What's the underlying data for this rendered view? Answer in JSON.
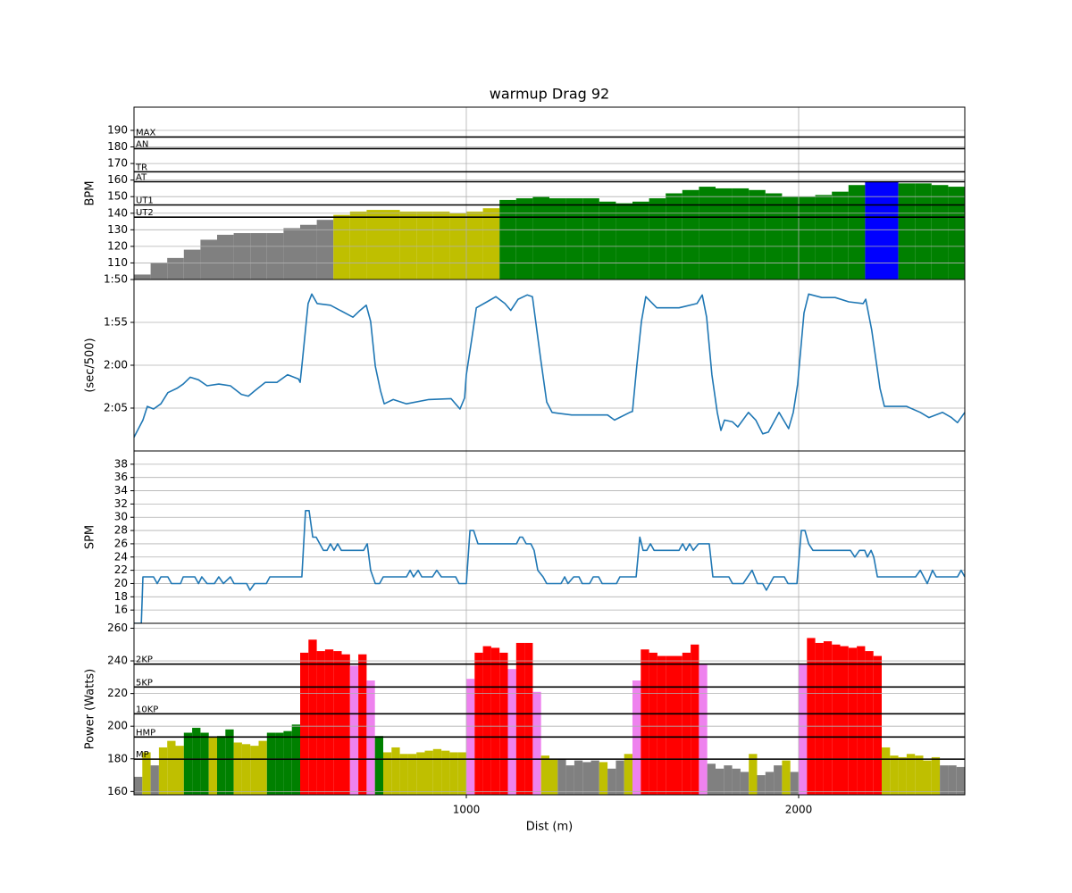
{
  "chart_data": [
    {
      "type": "bar",
      "title": "warmup Drag 92",
      "ylabel": "BPM",
      "xlim": [
        0,
        2500
      ],
      "xticks": [
        1000,
        2000
      ],
      "ylim": [
        100,
        204
      ],
      "yticks": [
        110,
        120,
        130,
        140,
        150,
        160,
        170,
        180,
        190
      ],
      "grid": true,
      "hlines": [
        {
          "value": 186,
          "label": "MAX"
        },
        {
          "value": 179,
          "label": "AN"
        },
        {
          "value": 165,
          "label": "TR"
        },
        {
          "value": 159,
          "label": "AT"
        },
        {
          "value": 145,
          "label": "UT1"
        },
        {
          "value": 137.6,
          "label": "UT2"
        }
      ],
      "x": [
        0,
        50,
        100,
        150,
        200,
        250,
        300,
        350,
        400,
        450,
        500,
        550,
        600,
        650,
        700,
        750,
        800,
        850,
        900,
        950,
        1000,
        1050,
        1100,
        1150,
        1200,
        1250,
        1300,
        1350,
        1400,
        1450,
        1500,
        1550,
        1600,
        1650,
        1700,
        1750,
        1800,
        1850,
        1900,
        1950,
        2000,
        2050,
        2100,
        2150,
        2200,
        2250,
        2300,
        2350,
        2400,
        2450
      ],
      "values": [
        103,
        110,
        113,
        118,
        124,
        127,
        128,
        128,
        128,
        131,
        133,
        136,
        139,
        141,
        142,
        142,
        141,
        141,
        141,
        140,
        141,
        143,
        148,
        149,
        150,
        149,
        149,
        149,
        147,
        146,
        147,
        149,
        152,
        154,
        156,
        155,
        155,
        154,
        152,
        150,
        150,
        151,
        153,
        157,
        159,
        159,
        158,
        158,
        157,
        156
      ],
      "colors": [
        "#808080",
        "#808080",
        "#808080",
        "#808080",
        "#808080",
        "#808080",
        "#808080",
        "#808080",
        "#808080",
        "#808080",
        "#808080",
        "#808080",
        "#bfbf00",
        "#bfbf00",
        "#bfbf00",
        "#bfbf00",
        "#bfbf00",
        "#bfbf00",
        "#bfbf00",
        "#bfbf00",
        "#bfbf00",
        "#bfbf00",
        "#008000",
        "#008000",
        "#008000",
        "#008000",
        "#008000",
        "#008000",
        "#008000",
        "#008000",
        "#008000",
        "#008000",
        "#008000",
        "#008000",
        "#008000",
        "#008000",
        "#008000",
        "#008000",
        "#008000",
        "#008000",
        "#008000",
        "#008000",
        "#008000",
        "#008000",
        "#0000ff",
        "#0000ff",
        "#008000",
        "#008000",
        "#008000",
        "#008000"
      ]
    },
    {
      "type": "line",
      "ylabel": "(sec/500)",
      "xlim": [
        0,
        2500
      ],
      "xticks": [
        1000,
        2000
      ],
      "ylim": [
        130,
        110
      ],
      "yticks": [
        {
          "value": 110,
          "label": "1:50"
        },
        {
          "value": 115,
          "label": "1:55"
        },
        {
          "value": 120,
          "label": "2:00"
        },
        {
          "value": 125,
          "label": "2:05"
        }
      ],
      "grid": true,
      "color": "#1f77b4",
      "x": [
        0,
        27,
        40,
        59,
        81,
        102,
        129,
        148,
        169,
        194,
        220,
        255,
        290,
        323,
        344,
        363,
        395,
        430,
        462,
        495,
        500,
        505,
        524,
        535,
        551,
        591,
        659,
        680,
        699,
        712,
        726,
        742,
        753,
        780,
        820,
        887,
        954,
        981,
        995,
        1000,
        1016,
        1030,
        1062,
        1089,
        1116,
        1134,
        1156,
        1183,
        1199,
        1223,
        1242,
        1258,
        1277,
        1317,
        1425,
        1446,
        1492,
        1500,
        1513,
        1527,
        1540,
        1573,
        1640,
        1694,
        1710,
        1723,
        1739,
        1755,
        1766,
        1777,
        1801,
        1817,
        1849,
        1871,
        1892,
        1909,
        1941,
        1970,
        1984,
        1997,
        2016,
        2030,
        2070,
        2110,
        2151,
        2194,
        2202,
        2220,
        2245,
        2258,
        2285,
        2325,
        2366,
        2392,
        2433,
        2460,
        2478,
        2500
      ],
      "values": [
        128.4,
        126.4,
        124.8,
        125.1,
        124.5,
        123.2,
        122.7,
        122.2,
        121.4,
        121.7,
        122.4,
        122.2,
        122.4,
        123.4,
        123.6,
        123,
        122,
        122,
        121.1,
        121.6,
        122,
        120.1,
        112.8,
        111.7,
        112.8,
        113,
        114.4,
        113.6,
        113,
        114.9,
        120.1,
        123,
        124.5,
        124,
        124.5,
        124,
        123.9,
        125.1,
        123.8,
        121.1,
        117,
        113.3,
        112.6,
        112,
        112.8,
        113.6,
        112.3,
        111.8,
        112,
        119.1,
        124.3,
        125.5,
        125.6,
        125.8,
        125.8,
        126.4,
        125.5,
        125.4,
        120.1,
        114.9,
        112,
        113.3,
        113.3,
        112.8,
        111.8,
        114.4,
        121.1,
        125.5,
        127.6,
        126.4,
        126.6,
        127.2,
        125.5,
        126.4,
        128,
        127.8,
        125.5,
        127.4,
        125.5,
        122.2,
        113.9,
        111.7,
        112.1,
        112.1,
        112.6,
        112.8,
        112.3,
        115.9,
        122.7,
        124.8,
        124.8,
        124.8,
        125.5,
        126.1,
        125.5,
        126.1,
        126.7,
        125.5
      ]
    },
    {
      "type": "line",
      "ylabel": "SPM",
      "xlim": [
        0,
        2500
      ],
      "xticks": [
        1000,
        2000
      ],
      "ylim": [
        14,
        40
      ],
      "yticks": [
        16,
        18,
        20,
        22,
        24,
        26,
        28,
        30,
        32,
        34,
        36,
        38
      ],
      "grid": true,
      "color": "#1f77b4",
      "x": [
        0,
        22,
        27,
        59,
        70,
        81,
        102,
        113,
        140,
        148,
        183,
        194,
        204,
        220,
        242,
        255,
        269,
        290,
        301,
        339,
        349,
        363,
        398,
        409,
        505,
        516,
        527,
        538,
        548,
        570,
        581,
        591,
        602,
        613,
        624,
        691,
        702,
        712,
        726,
        739,
        750,
        820,
        831,
        841,
        855,
        866,
        898,
        911,
        925,
        968,
        978,
        1000,
        1011,
        1022,
        1035,
        1151,
        1161,
        1169,
        1180,
        1194,
        1204,
        1215,
        1231,
        1242,
        1285,
        1296,
        1306,
        1323,
        1339,
        1349,
        1371,
        1382,
        1398,
        1409,
        1452,
        1462,
        1511,
        1522,
        1532,
        1543,
        1554,
        1565,
        1640,
        1651,
        1661,
        1672,
        1683,
        1699,
        1731,
        1742,
        1790,
        1801,
        1833,
        1860,
        1876,
        1892,
        1903,
        1925,
        1957,
        1968,
        1995,
        2008,
        2019,
        2030,
        2043,
        2156,
        2169,
        2183,
        2199,
        2207,
        2218,
        2226,
        2237,
        2352,
        2366,
        2387,
        2403,
        2414,
        2478,
        2489,
        2500
      ],
      "values": [
        14,
        14,
        21,
        21,
        20,
        21,
        21,
        20,
        20,
        21,
        21,
        20,
        21,
        20,
        20,
        21,
        20,
        21,
        20,
        20,
        19,
        20,
        20,
        21,
        21,
        31,
        31,
        27,
        27,
        25,
        25,
        26,
        25,
        26,
        25,
        25,
        26,
        22,
        20,
        20,
        21,
        21,
        22,
        21,
        22,
        21,
        21,
        22,
        21,
        21,
        20,
        20,
        28,
        28,
        26,
        26,
        27,
        27,
        26,
        26,
        25,
        22,
        21,
        20,
        20,
        21,
        20,
        21,
        21,
        20,
        20,
        21,
        21,
        20,
        20,
        21,
        21,
        27,
        25,
        25,
        26,
        25,
        25,
        26,
        25,
        26,
        25,
        26,
        26,
        21,
        21,
        20,
        20,
        22,
        20,
        20,
        19,
        21,
        21,
        20,
        20,
        28,
        28,
        26,
        25,
        25,
        24,
        25,
        25,
        24,
        25,
        24,
        21,
        21,
        22,
        20,
        22,
        21,
        21,
        22,
        21
      ]
    },
    {
      "type": "bar",
      "ylabel": "Power (Watts)",
      "xlabel": "Dist (m)",
      "xlim": [
        0,
        2500
      ],
      "xticks": [
        1000,
        2000
      ],
      "ylim": [
        158,
        263
      ],
      "yticks": [
        160,
        180,
        200,
        220,
        240,
        260
      ],
      "grid": true,
      "hlines": [
        {
          "value": 238,
          "label": "2KP"
        },
        {
          "value": 224,
          "label": "5KP"
        },
        {
          "value": 207.6,
          "label": "10KP"
        },
        {
          "value": 193.4,
          "label": "HMP"
        },
        {
          "value": 179.8,
          "label": "MP"
        }
      ],
      "x": [
        0,
        25,
        50,
        75,
        100,
        125,
        150,
        175,
        200,
        225,
        250,
        275,
        300,
        325,
        350,
        375,
        400,
        425,
        450,
        475,
        500,
        525,
        550,
        575,
        600,
        625,
        650,
        675,
        700,
        725,
        750,
        775,
        800,
        825,
        850,
        875,
        900,
        925,
        950,
        975,
        1000,
        1025,
        1050,
        1075,
        1100,
        1125,
        1150,
        1175,
        1200,
        1225,
        1250,
        1275,
        1300,
        1325,
        1350,
        1375,
        1400,
        1425,
        1450,
        1475,
        1500,
        1525,
        1550,
        1575,
        1600,
        1625,
        1650,
        1675,
        1700,
        1725,
        1750,
        1775,
        1800,
        1825,
        1850,
        1875,
        1900,
        1925,
        1950,
        1975,
        2000,
        2025,
        2050,
        2075,
        2100,
        2125,
        2150,
        2175,
        2200,
        2225,
        2250,
        2275,
        2300,
        2325,
        2350,
        2375,
        2400,
        2425,
        2450,
        2475
      ],
      "values": [
        169,
        184,
        176,
        187,
        191,
        188,
        196,
        199,
        196,
        193,
        194,
        198,
        190,
        189,
        188,
        191,
        196,
        196,
        197,
        201,
        245,
        253,
        246,
        247,
        246,
        244,
        237,
        244,
        228,
        194,
        184,
        187,
        183,
        183,
        184,
        185,
        186,
        185,
        184,
        184,
        229,
        245,
        249,
        248,
        245,
        235,
        251,
        251,
        221,
        182,
        180,
        180,
        176,
        179,
        178,
        179,
        178,
        174,
        179,
        183,
        228,
        247,
        245,
        243,
        243,
        243,
        245,
        250,
        238,
        177,
        174,
        176,
        174,
        172,
        183,
        170,
        172,
        176,
        179,
        172,
        238,
        254,
        251,
        252,
        250,
        249,
        248,
        249,
        246,
        243,
        187,
        182,
        181,
        183,
        182,
        179,
        181,
        176,
        176,
        175
      ],
      "colors": [
        "#808080",
        "#bfbf00",
        "#808080",
        "#bfbf00",
        "#bfbf00",
        "#bfbf00",
        "#008000",
        "#008000",
        "#008000",
        "#bfbf00",
        "#008000",
        "#008000",
        "#bfbf00",
        "#bfbf00",
        "#bfbf00",
        "#bfbf00",
        "#008000",
        "#008000",
        "#008000",
        "#008000",
        "#ff0000",
        "#ff0000",
        "#ff0000",
        "#ff0000",
        "#ff0000",
        "#ff0000",
        "#ee82ee",
        "#ff0000",
        "#ee82ee",
        "#008000",
        "#bfbf00",
        "#bfbf00",
        "#bfbf00",
        "#bfbf00",
        "#bfbf00",
        "#bfbf00",
        "#bfbf00",
        "#bfbf00",
        "#bfbf00",
        "#bfbf00",
        "#ee82ee",
        "#ff0000",
        "#ff0000",
        "#ff0000",
        "#ff0000",
        "#ee82ee",
        "#ff0000",
        "#ff0000",
        "#ee82ee",
        "#bfbf00",
        "#bfbf00",
        "#808080",
        "#808080",
        "#808080",
        "#808080",
        "#808080",
        "#bfbf00",
        "#808080",
        "#808080",
        "#bfbf00",
        "#ee82ee",
        "#ff0000",
        "#ff0000",
        "#ff0000",
        "#ff0000",
        "#ff0000",
        "#ff0000",
        "#ff0000",
        "#ee82ee",
        "#808080",
        "#808080",
        "#808080",
        "#808080",
        "#808080",
        "#bfbf00",
        "#808080",
        "#808080",
        "#808080",
        "#bfbf00",
        "#808080",
        "#ee82ee",
        "#ff0000",
        "#ff0000",
        "#ff0000",
        "#ff0000",
        "#ff0000",
        "#ff0000",
        "#ff0000",
        "#ff0000",
        "#ff0000",
        "#bfbf00",
        "#bfbf00",
        "#bfbf00",
        "#bfbf00",
        "#bfbf00",
        "#bfbf00",
        "#bfbf00",
        "#808080",
        "#808080",
        "#808080"
      ]
    }
  ]
}
